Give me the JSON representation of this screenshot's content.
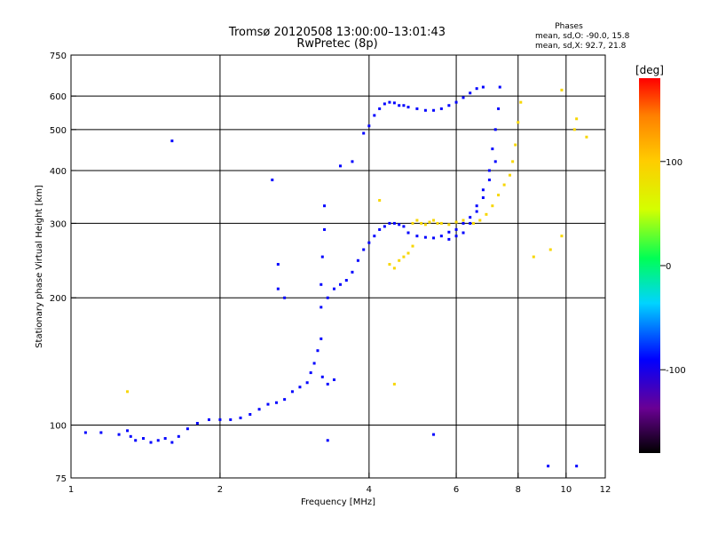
{
  "chart_data": {
    "type": "scatter",
    "title": "Tromsø 20120508 13:00:00–13:01:43",
    "subtitle": "RwPretec (8p)",
    "xlabel": "Frequency [MHz]",
    "ylabel": "Stationary phase Virtual Height [km]",
    "xscale": "log",
    "yscale": "log",
    "xlim": [
      1,
      12
    ],
    "ylim": [
      75,
      750
    ],
    "grid": true,
    "x_ticks": [
      {
        "label": "1",
        "value": 1,
        "major": false
      },
      {
        "label": "2",
        "value": 2,
        "major": true
      },
      {
        "label": "4",
        "value": 4,
        "major": true
      },
      {
        "label": "6",
        "value": 6,
        "major": true
      },
      {
        "label": "8",
        "value": 8,
        "major": true
      },
      {
        "label": "10",
        "value": 10,
        "major": true
      },
      {
        "label": "12",
        "value": 12,
        "major": false
      }
    ],
    "y_ticks": [
      {
        "label": "75",
        "value": 75,
        "major": false
      },
      {
        "label": "100",
        "value": 100,
        "major": true
      },
      {
        "label": "200",
        "value": 200,
        "major": true
      },
      {
        "label": "300",
        "value": 300,
        "major": true
      },
      {
        "label": "400",
        "value": 400,
        "major": true
      },
      {
        "label": "500",
        "value": 500,
        "major": true
      },
      {
        "label": "600",
        "value": 600,
        "major": true
      },
      {
        "label": "750",
        "value": 750,
        "major": false
      }
    ],
    "phase_stats": {
      "heading": "Phases",
      "line1": "mean, sd,O: -90.0, 15.8",
      "line2": "mean, sd,X:  92.7, 21.8"
    },
    "colorbar": {
      "label": "[deg]",
      "range": [
        -180,
        180
      ],
      "ticks": [
        {
          "label": "100",
          "value": 100
        },
        {
          "label": "0",
          "value": 0
        },
        {
          "label": "-100",
          "value": -100
        }
      ],
      "colors": [
        "#000000",
        "#6a0094",
        "#0000ff",
        "#00d4ff",
        "#00ff55",
        "#d4ff00",
        "#ffcc00",
        "#ff8000",
        "#ff0000"
      ]
    },
    "series": [
      {
        "mode": "O",
        "phase_deg": -90,
        "points": [
          [
            1.07,
            96
          ],
          [
            1.15,
            96
          ],
          [
            1.25,
            95
          ],
          [
            1.3,
            97
          ],
          [
            1.32,
            94
          ],
          [
            1.35,
            92
          ],
          [
            1.4,
            93
          ],
          [
            1.45,
            91
          ],
          [
            1.5,
            92
          ],
          [
            1.55,
            93
          ],
          [
            1.6,
            91
          ],
          [
            1.65,
            94
          ],
          [
            1.72,
            98
          ],
          [
            1.8,
            101
          ],
          [
            1.9,
            103
          ],
          [
            2.0,
            103
          ],
          [
            2.1,
            103
          ],
          [
            2.2,
            104
          ],
          [
            2.3,
            106
          ],
          [
            2.4,
            109
          ],
          [
            2.5,
            112
          ],
          [
            2.6,
            113
          ],
          [
            2.7,
            115
          ],
          [
            2.8,
            120
          ],
          [
            2.9,
            123
          ],
          [
            3.0,
            126
          ],
          [
            3.05,
            133
          ],
          [
            3.1,
            140
          ],
          [
            3.15,
            150
          ],
          [
            3.2,
            160
          ],
          [
            3.22,
            130
          ],
          [
            3.3,
            125
          ],
          [
            3.4,
            128
          ],
          [
            3.2,
            190
          ],
          [
            3.2,
            215
          ],
          [
            3.22,
            250
          ],
          [
            3.25,
            290
          ],
          [
            3.25,
            330
          ],
          [
            3.3,
            200
          ],
          [
            3.4,
            210
          ],
          [
            3.5,
            215
          ],
          [
            3.6,
            220
          ],
          [
            3.7,
            230
          ],
          [
            3.8,
            245
          ],
          [
            3.9,
            260
          ],
          [
            4.0,
            270
          ],
          [
            4.1,
            280
          ],
          [
            4.2,
            290
          ],
          [
            4.3,
            295
          ],
          [
            4.4,
            300
          ],
          [
            4.5,
            300
          ],
          [
            4.6,
            298
          ],
          [
            4.7,
            295
          ],
          [
            4.8,
            285
          ],
          [
            5.0,
            280
          ],
          [
            5.2,
            278
          ],
          [
            5.4,
            277
          ],
          [
            5.6,
            280
          ],
          [
            5.8,
            286
          ],
          [
            6.0,
            290
          ],
          [
            6.2,
            300
          ],
          [
            6.4,
            310
          ],
          [
            6.6,
            330
          ],
          [
            6.8,
            360
          ],
          [
            7.0,
            400
          ],
          [
            7.1,
            450
          ],
          [
            7.2,
            500
          ],
          [
            7.3,
            560
          ],
          [
            7.35,
            630
          ],
          [
            2.62,
            240
          ],
          [
            2.62,
            210
          ],
          [
            2.7,
            200
          ],
          [
            3.5,
            410
          ],
          [
            3.7,
            420
          ],
          [
            3.9,
            490
          ],
          [
            4.0,
            510
          ],
          [
            4.1,
            540
          ],
          [
            4.2,
            560
          ],
          [
            4.3,
            575
          ],
          [
            4.4,
            580
          ],
          [
            4.5,
            578
          ],
          [
            4.6,
            570
          ],
          [
            4.7,
            570
          ],
          [
            4.8,
            565
          ],
          [
            5.0,
            560
          ],
          [
            5.2,
            555
          ],
          [
            5.4,
            555
          ],
          [
            5.6,
            560
          ],
          [
            5.8,
            570
          ],
          [
            6.0,
            580
          ],
          [
            6.2,
            595
          ],
          [
            6.4,
            610
          ],
          [
            6.6,
            625
          ],
          [
            6.8,
            630
          ],
          [
            5.8,
            275
          ],
          [
            6.0,
            280
          ],
          [
            6.2,
            285
          ],
          [
            6.4,
            300
          ],
          [
            6.6,
            320
          ],
          [
            6.8,
            345
          ],
          [
            7.0,
            380
          ],
          [
            7.2,
            420
          ],
          [
            2.55,
            380
          ],
          [
            1.6,
            470
          ],
          [
            10.5,
            80
          ],
          [
            9.2,
            80
          ],
          [
            5.4,
            95
          ],
          [
            3.3,
            92
          ]
        ]
      },
      {
        "mode": "X",
        "phase_deg": 92,
        "points": [
          [
            4.4,
            240
          ],
          [
            4.5,
            235
          ],
          [
            4.6,
            245
          ],
          [
            4.7,
            250
          ],
          [
            4.8,
            255
          ],
          [
            4.9,
            265
          ],
          [
            4.9,
            300
          ],
          [
            5.0,
            305
          ],
          [
            5.1,
            300
          ],
          [
            5.2,
            298
          ],
          [
            5.3,
            302
          ],
          [
            5.4,
            305
          ],
          [
            5.5,
            300
          ],
          [
            5.6,
            300
          ],
          [
            5.8,
            298
          ],
          [
            6.0,
            302
          ],
          [
            6.2,
            305
          ],
          [
            6.5,
            300
          ],
          [
            6.7,
            305
          ],
          [
            6.9,
            315
          ],
          [
            7.1,
            330
          ],
          [
            7.3,
            350
          ],
          [
            7.5,
            370
          ],
          [
            7.7,
            390
          ],
          [
            7.8,
            420
          ],
          [
            7.9,
            460
          ],
          [
            8.0,
            520
          ],
          [
            8.1,
            580
          ],
          [
            9.8,
            620
          ],
          [
            10.4,
            500
          ],
          [
            10.5,
            530
          ],
          [
            11.0,
            480
          ],
          [
            8.6,
            250
          ],
          [
            9.3,
            260
          ],
          [
            9.8,
            280
          ],
          [
            4.2,
            340
          ],
          [
            4.5,
            125
          ],
          [
            1.3,
            120
          ]
        ]
      }
    ]
  }
}
